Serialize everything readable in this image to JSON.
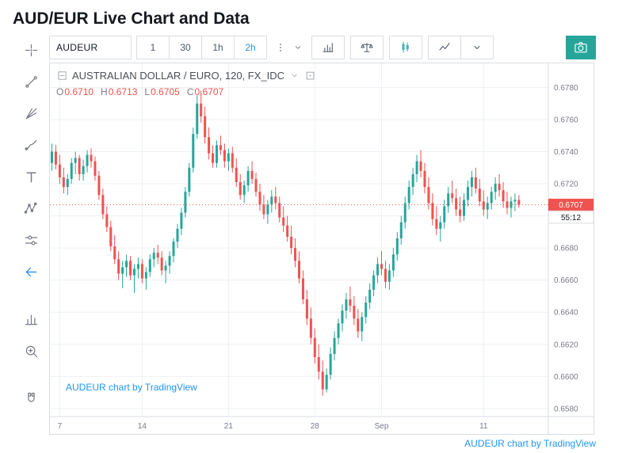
{
  "page": {
    "title": "AUD/EUR Live Chart and Data",
    "footer_link": "AUDEUR chart by TradingView"
  },
  "toolbar": {
    "symbol": "AUDEUR",
    "intervals": [
      {
        "label": "1",
        "active": false
      },
      {
        "label": "30",
        "active": false
      },
      {
        "label": "1h",
        "active": false
      },
      {
        "label": "2h",
        "active": true
      }
    ],
    "menu_buttons": [
      {
        "name": "more-intervals-button",
        "icon": "more-vert"
      },
      {
        "name": "intervals-dropdown-button",
        "icon": "caret-down"
      }
    ],
    "style_buttons": [
      {
        "name": "indicators-button",
        "icon": "indicators",
        "accent": false,
        "with_caret": false
      },
      {
        "name": "compare-button",
        "icon": "scales",
        "accent": false,
        "with_caret": false
      },
      {
        "name": "chart-style-candles-button",
        "icon": "candles",
        "accent": true,
        "with_caret": false
      },
      {
        "name": "chart-style-line-button",
        "icon": "line-chart",
        "accent": false,
        "with_caret": true
      }
    ],
    "camera_button": {
      "name": "snapshot-camera-button",
      "icon": "camera"
    }
  },
  "left_toolbar": {
    "tools": [
      {
        "name": "crosshair-tool",
        "icon": "crosshair"
      },
      {
        "name": "trend-line-tool",
        "icon": "trend-line"
      },
      {
        "name": "gann-fibonacci-tool",
        "icon": "gann"
      },
      {
        "name": "brush-tool",
        "icon": "brush"
      },
      {
        "name": "text-tool",
        "icon": "text"
      },
      {
        "name": "xabcd-pattern-tool",
        "icon": "xabcd"
      },
      {
        "name": "prediction-measure-tool",
        "icon": "sliders"
      },
      {
        "name": "hide-drawings-arrow",
        "icon": "arrow-left",
        "accent": true
      },
      {
        "gap": true
      },
      {
        "name": "bar-pattern-tool",
        "icon": "histogram"
      },
      {
        "name": "zoom-in-tool",
        "icon": "zoom-in"
      },
      {
        "gap": true
      },
      {
        "name": "magnet-tool",
        "icon": "magnet"
      }
    ]
  },
  "legend": {
    "title": "AUSTRALIAN DOLLAR / EURO, 120, FX_IDC",
    "ohlc": [
      {
        "label": "O",
        "value": "0.6710"
      },
      {
        "label": "H",
        "value": "0.6713"
      },
      {
        "label": "L",
        "value": "0.6705"
      },
      {
        "label": "C",
        "value": "0.6707"
      }
    ],
    "watermark": "AUDEUR chart by TradingView"
  },
  "colors": {
    "up": "#26a69a",
    "down": "#ef5350",
    "accent": "#2196f3",
    "accent_strong": "#1e88e5",
    "style_active": "#3bb3c4",
    "icon_gray": "#787b86",
    "border": "#dadde0",
    "grid": "#edf0f4",
    "text_dark": "#131722",
    "camera_bg": "#26a69a",
    "link": "#2196f3"
  },
  "chart_data": {
    "type": "candlestick",
    "symbol": "AUDEUR",
    "interval_minutes": 120,
    "y_min": 0.6575,
    "y_max": 0.6795,
    "y_ticks": [
      0.658,
      0.66,
      0.662,
      0.664,
      0.666,
      0.668,
      0.67,
      0.672,
      0.674,
      0.676,
      0.678
    ],
    "x_ticks": [
      {
        "index": 2,
        "label": "7"
      },
      {
        "index": 23,
        "label": "14"
      },
      {
        "index": 45,
        "label": "21"
      },
      {
        "index": 67,
        "label": "28"
      },
      {
        "index": 84,
        "label": "Sep"
      },
      {
        "index": 110,
        "label": "11"
      }
    ],
    "current_price": 0.6707,
    "countdown": "55:12",
    "candles": [
      [
        0.6733,
        0.6745,
        0.6728,
        0.674
      ],
      [
        0.674,
        0.6744,
        0.6729,
        0.6732
      ],
      [
        0.6732,
        0.6738,
        0.672,
        0.6724
      ],
      [
        0.6724,
        0.673,
        0.6714,
        0.6718
      ],
      [
        0.6718,
        0.6726,
        0.6713,
        0.6723
      ],
      [
        0.6723,
        0.6736,
        0.672,
        0.6733
      ],
      [
        0.6733,
        0.674,
        0.6726,
        0.6736
      ],
      [
        0.6736,
        0.6738,
        0.6722,
        0.6726
      ],
      [
        0.6726,
        0.6735,
        0.6722,
        0.6731
      ],
      [
        0.6731,
        0.6741,
        0.6727,
        0.6738
      ],
      [
        0.6738,
        0.6742,
        0.673,
        0.6734
      ],
      [
        0.6734,
        0.6737,
        0.6722,
        0.6725
      ],
      [
        0.6725,
        0.6728,
        0.671,
        0.6713
      ],
      [
        0.6713,
        0.6717,
        0.6698,
        0.6701
      ],
      [
        0.6701,
        0.6706,
        0.669,
        0.6693
      ],
      [
        0.6693,
        0.6697,
        0.6678,
        0.6681
      ],
      [
        0.6681,
        0.6688,
        0.667,
        0.6673
      ],
      [
        0.6673,
        0.6678,
        0.666,
        0.6664
      ],
      [
        0.6664,
        0.6672,
        0.6655,
        0.6668
      ],
      [
        0.6668,
        0.6676,
        0.6662,
        0.6672
      ],
      [
        0.6672,
        0.6675,
        0.666,
        0.6663
      ],
      [
        0.6663,
        0.667,
        0.6652,
        0.6667
      ],
      [
        0.6667,
        0.6674,
        0.6661,
        0.667
      ],
      [
        0.667,
        0.6673,
        0.6658,
        0.6661
      ],
      [
        0.6661,
        0.6668,
        0.6654,
        0.6665
      ],
      [
        0.6665,
        0.6676,
        0.6662,
        0.6673
      ],
      [
        0.6673,
        0.668,
        0.6668,
        0.6677
      ],
      [
        0.6677,
        0.6682,
        0.667,
        0.6674
      ],
      [
        0.6674,
        0.6678,
        0.6663,
        0.6666
      ],
      [
        0.6666,
        0.6672,
        0.6658,
        0.6669
      ],
      [
        0.6669,
        0.6678,
        0.6664,
        0.6675
      ],
      [
        0.6675,
        0.6686,
        0.6671,
        0.6684
      ],
      [
        0.6684,
        0.6695,
        0.668,
        0.6692
      ],
      [
        0.6692,
        0.6705,
        0.6688,
        0.6702
      ],
      [
        0.6702,
        0.6718,
        0.6699,
        0.6715
      ],
      [
        0.6715,
        0.6733,
        0.6712,
        0.673
      ],
      [
        0.673,
        0.6755,
        0.6727,
        0.6751
      ],
      [
        0.6751,
        0.6775,
        0.6748,
        0.677
      ],
      [
        0.677,
        0.6778,
        0.6758,
        0.6762
      ],
      [
        0.6762,
        0.6768,
        0.6745,
        0.6749
      ],
      [
        0.6749,
        0.6755,
        0.6735,
        0.6739
      ],
      [
        0.6739,
        0.6744,
        0.673,
        0.6733
      ],
      [
        0.6733,
        0.6747,
        0.673,
        0.6744
      ],
      [
        0.6744,
        0.675,
        0.6738,
        0.6741
      ],
      [
        0.6741,
        0.6745,
        0.673,
        0.6734
      ],
      [
        0.6734,
        0.6742,
        0.6728,
        0.6739
      ],
      [
        0.6739,
        0.6743,
        0.6727,
        0.673
      ],
      [
        0.673,
        0.6736,
        0.6718,
        0.6721
      ],
      [
        0.6721,
        0.6726,
        0.671,
        0.6713
      ],
      [
        0.6713,
        0.6722,
        0.6708,
        0.6719
      ],
      [
        0.6719,
        0.6731,
        0.6715,
        0.6728
      ],
      [
        0.6728,
        0.6734,
        0.672,
        0.6723
      ],
      [
        0.6723,
        0.6727,
        0.6712,
        0.6715
      ],
      [
        0.6715,
        0.672,
        0.6703,
        0.6707
      ],
      [
        0.6707,
        0.6713,
        0.6698,
        0.6701
      ],
      [
        0.6701,
        0.671,
        0.6695,
        0.6707
      ],
      [
        0.6707,
        0.6716,
        0.6702,
        0.6712
      ],
      [
        0.6712,
        0.6718,
        0.6704,
        0.6708
      ],
      [
        0.6708,
        0.6712,
        0.6696,
        0.6699
      ],
      [
        0.6699,
        0.6706,
        0.669,
        0.6694
      ],
      [
        0.6694,
        0.67,
        0.6684,
        0.6687
      ],
      [
        0.6687,
        0.6694,
        0.6676,
        0.668
      ],
      [
        0.668,
        0.6686,
        0.6668,
        0.6672
      ],
      [
        0.6672,
        0.6678,
        0.6658,
        0.6661
      ],
      [
        0.6661,
        0.6666,
        0.6645,
        0.6648
      ],
      [
        0.6648,
        0.6654,
        0.6632,
        0.6636
      ],
      [
        0.6636,
        0.6643,
        0.662,
        0.6624
      ],
      [
        0.6624,
        0.663,
        0.6608,
        0.6612
      ],
      [
        0.6612,
        0.662,
        0.6598,
        0.6603
      ],
      [
        0.6603,
        0.661,
        0.6588,
        0.6592
      ],
      [
        0.6592,
        0.6605,
        0.659,
        0.6601
      ],
      [
        0.6601,
        0.6618,
        0.6598,
        0.6614
      ],
      [
        0.6614,
        0.6628,
        0.661,
        0.6624
      ],
      [
        0.6624,
        0.6636,
        0.662,
        0.6633
      ],
      [
        0.6633,
        0.6645,
        0.6628,
        0.6641
      ],
      [
        0.6641,
        0.6652,
        0.6636,
        0.6648
      ],
      [
        0.6648,
        0.6656,
        0.664,
        0.6644
      ],
      [
        0.6644,
        0.665,
        0.6632,
        0.6636
      ],
      [
        0.6636,
        0.6642,
        0.6624,
        0.6628
      ],
      [
        0.6628,
        0.664,
        0.6622,
        0.6637
      ],
      [
        0.6637,
        0.665,
        0.6633,
        0.6646
      ],
      [
        0.6646,
        0.6658,
        0.6642,
        0.6654
      ],
      [
        0.6654,
        0.6666,
        0.665,
        0.6663
      ],
      [
        0.6663,
        0.6674,
        0.6658,
        0.667
      ],
      [
        0.667,
        0.6678,
        0.6663,
        0.6667
      ],
      [
        0.6667,
        0.6672,
        0.6655,
        0.6659
      ],
      [
        0.6659,
        0.667,
        0.6654,
        0.6666
      ],
      [
        0.6666,
        0.668,
        0.6662,
        0.6676
      ],
      [
        0.6676,
        0.669,
        0.6672,
        0.6686
      ],
      [
        0.6686,
        0.67,
        0.6682,
        0.6696
      ],
      [
        0.6696,
        0.6712,
        0.6692,
        0.6708
      ],
      [
        0.6708,
        0.6722,
        0.6704,
        0.6718
      ],
      [
        0.6718,
        0.673,
        0.6713,
        0.6726
      ],
      [
        0.6726,
        0.6738,
        0.6721,
        0.6734
      ],
      [
        0.6734,
        0.6741,
        0.6724,
        0.6728
      ],
      [
        0.6728,
        0.6733,
        0.6714,
        0.6718
      ],
      [
        0.6718,
        0.6724,
        0.6704,
        0.6708
      ],
      [
        0.6708,
        0.6714,
        0.6694,
        0.6698
      ],
      [
        0.6698,
        0.6706,
        0.6688,
        0.6692
      ],
      [
        0.6692,
        0.67,
        0.6684,
        0.6696
      ],
      [
        0.6696,
        0.671,
        0.6692,
        0.6706
      ],
      [
        0.6706,
        0.6718,
        0.6702,
        0.6714
      ],
      [
        0.6714,
        0.6722,
        0.6708,
        0.6711
      ],
      [
        0.6711,
        0.6717,
        0.67,
        0.6704
      ],
      [
        0.6704,
        0.6712,
        0.6696,
        0.67
      ],
      [
        0.67,
        0.6714,
        0.6697,
        0.671
      ],
      [
        0.671,
        0.6722,
        0.6706,
        0.6718
      ],
      [
        0.6718,
        0.6728,
        0.6712,
        0.6724
      ],
      [
        0.6724,
        0.673,
        0.6714,
        0.6717
      ],
      [
        0.6717,
        0.6723,
        0.6706,
        0.6709
      ],
      [
        0.6709,
        0.6716,
        0.67,
        0.6704
      ],
      [
        0.6704,
        0.6712,
        0.6698,
        0.6708
      ],
      [
        0.6708,
        0.6718,
        0.6704,
        0.6715
      ],
      [
        0.6715,
        0.6724,
        0.671,
        0.672
      ],
      [
        0.672,
        0.6726,
        0.6712,
        0.6716
      ],
      [
        0.6716,
        0.6721,
        0.6705,
        0.6709
      ],
      [
        0.6709,
        0.6715,
        0.6701,
        0.6705
      ],
      [
        0.6705,
        0.6712,
        0.6699,
        0.6709
      ],
      [
        0.6709,
        0.6714,
        0.6703,
        0.671
      ],
      [
        0.671,
        0.6713,
        0.6705,
        0.6707
      ]
    ]
  }
}
